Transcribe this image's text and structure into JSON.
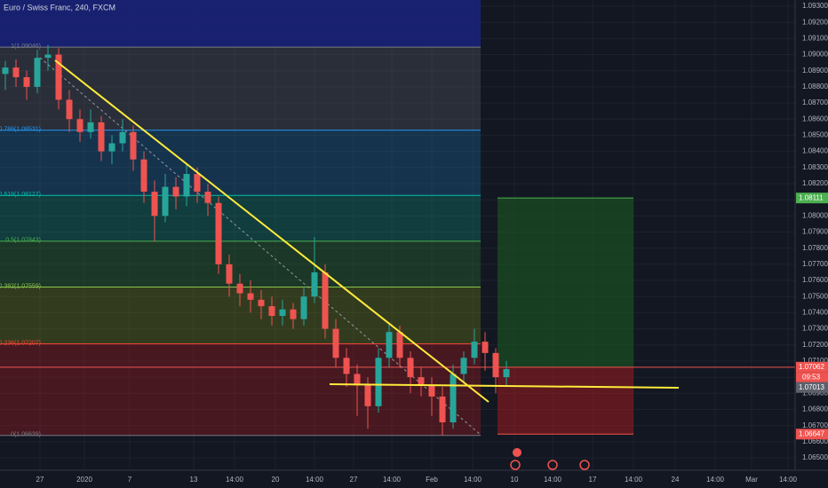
{
  "header": {
    "title": "Euro / Swiss Franc, 240, FXCM"
  },
  "price_axis": {
    "ticks": [
      {
        "value": 1.093,
        "label": "1.09300"
      },
      {
        "value": 1.092,
        "label": "1.09200"
      },
      {
        "value": 1.091,
        "label": "1.09100"
      },
      {
        "value": 1.09,
        "label": "1.09000"
      },
      {
        "value": 1.089,
        "label": "1.08900"
      },
      {
        "value": 1.088,
        "label": "1.08800"
      },
      {
        "value": 1.087,
        "label": "1.08700"
      },
      {
        "value": 1.086,
        "label": "1.08600"
      },
      {
        "value": 1.085,
        "label": "1.08500"
      },
      {
        "value": 1.084,
        "label": "1.08400"
      },
      {
        "value": 1.083,
        "label": "1.08300"
      },
      {
        "value": 1.082,
        "label": "1.08200"
      },
      {
        "value": 1.081,
        "label": "1.08100"
      },
      {
        "value": 1.08,
        "label": "1.08000"
      },
      {
        "value": 1.079,
        "label": "1.07900"
      },
      {
        "value": 1.078,
        "label": "1.07800"
      },
      {
        "value": 1.077,
        "label": "1.07700"
      },
      {
        "value": 1.076,
        "label": "1.07600"
      },
      {
        "value": 1.075,
        "label": "1.07500"
      },
      {
        "value": 1.074,
        "label": "1.07400"
      },
      {
        "value": 1.073,
        "label": "1.07300"
      },
      {
        "value": 1.072,
        "label": "1.07200"
      },
      {
        "value": 1.071,
        "label": "1.07100"
      },
      {
        "value": 1.07,
        "label": "1.07000"
      },
      {
        "value": 1.069,
        "label": "1.06900"
      },
      {
        "value": 1.068,
        "label": "1.06800"
      },
      {
        "value": 1.067,
        "label": "1.06700"
      },
      {
        "value": 1.066,
        "label": "1.06600"
      },
      {
        "value": 1.065,
        "label": "1.06500"
      }
    ]
  },
  "time_axis": {
    "labels": [
      "27",
      "2020",
      "7",
      "13",
      "14:00",
      "20",
      "14:00",
      "27",
      "14:00",
      "Feb",
      "14:00",
      "10",
      "14:00",
      "17",
      "14:00",
      "24",
      "14:00",
      "Mar",
      "14:00"
    ]
  },
  "fib_levels": [
    {
      "level": 1,
      "price": 1.09046,
      "label": "1(1.09046)"
    },
    {
      "level": 0.786,
      "price": 1.08531,
      "label": "0.786(1.08531)"
    },
    {
      "level": 0.618,
      "price": 1.08127,
      "label": "0.618(1.08127)"
    },
    {
      "level": 0.5,
      "price": 1.07843,
      "label": "0.5(1.07843)"
    },
    {
      "level": 0.382,
      "price": 1.07559,
      "label": "0.382(1.07559)"
    },
    {
      "level": 0.236,
      "price": 1.07207,
      "label": "0.236(1.07207)"
    },
    {
      "level": 0,
      "price": 1.06639,
      "label": "0(1.06639)"
    }
  ],
  "candles": [
    [
      1.0888,
      1.0896,
      1.0878,
      1.0892
    ],
    [
      1.0892,
      1.0897,
      1.088,
      1.0886
    ],
    [
      1.0886,
      1.089,
      1.0872,
      1.088
    ],
    [
      1.088,
      1.0903,
      1.0876,
      1.0898
    ],
    [
      1.0898,
      1.0906,
      1.089,
      1.09
    ],
    [
      1.09,
      1.0904,
      1.0866,
      1.0872
    ],
    [
      1.0872,
      1.0878,
      1.0852,
      1.086
    ],
    [
      1.086,
      1.0866,
      1.0846,
      1.0852
    ],
    [
      1.0852,
      1.0866,
      1.0848,
      1.0858
    ],
    [
      1.0858,
      1.0862,
      1.0834,
      1.084
    ],
    [
      1.084,
      1.085,
      1.0832,
      1.0845
    ],
    [
      1.0845,
      1.086,
      1.084,
      1.0852
    ],
    [
      1.0852,
      1.0856,
      1.0828,
      1.0835
    ],
    [
      1.0835,
      1.084,
      1.0808,
      1.0815
    ],
    [
      1.0815,
      1.0822,
      1.0784,
      1.08
    ],
    [
      1.08,
      1.0826,
      1.0796,
      1.0818
    ],
    [
      1.0818,
      1.0824,
      1.0804,
      1.0812
    ],
    [
      1.0812,
      1.0832,
      1.0806,
      1.0826
    ],
    [
      1.0826,
      1.083,
      1.0808,
      1.0815
    ],
    [
      1.0815,
      1.082,
      1.08,
      1.0808
    ],
    [
      1.0808,
      1.0812,
      1.0764,
      1.077
    ],
    [
      1.077,
      1.0776,
      1.075,
      1.0758
    ],
    [
      1.0758,
      1.0764,
      1.0744,
      1.0752
    ],
    [
      1.0752,
      1.076,
      1.074,
      1.0748
    ],
    [
      1.0748,
      1.0754,
      1.0736,
      1.0744
    ],
    [
      1.0744,
      1.075,
      1.0732,
      1.0738
    ],
    [
      1.0738,
      1.0748,
      1.0732,
      1.0742
    ],
    [
      1.0742,
      1.0746,
      1.073,
      1.0736
    ],
    [
      1.0736,
      1.0756,
      1.0732,
      1.075
    ],
    [
      1.075,
      1.0787,
      1.0746,
      1.0765
    ],
    [
      1.0765,
      1.077,
      1.0724,
      1.073
    ],
    [
      1.073,
      1.0736,
      1.0706,
      1.0712
    ],
    [
      1.0712,
      1.0718,
      1.0694,
      1.0702
    ],
    [
      1.0702,
      1.0708,
      1.0676,
      1.0695
    ],
    [
      1.0695,
      1.07,
      1.0668,
      1.0682
    ],
    [
      1.0682,
      1.0718,
      1.0678,
      1.0712
    ],
    [
      1.0712,
      1.0734,
      1.0706,
      1.0728
    ],
    [
      1.0728,
      1.0732,
      1.0706,
      1.0712
    ],
    [
      1.0712,
      1.0716,
      1.069,
      1.07
    ],
    [
      1.07,
      1.0706,
      1.0688,
      1.0695
    ],
    [
      1.0695,
      1.07,
      1.0676,
      1.0688
    ],
    [
      1.0688,
      1.0694,
      1.0664,
      1.0672
    ],
    [
      1.0672,
      1.0708,
      1.0668,
      1.0702
    ],
    [
      1.0702,
      1.0716,
      1.0696,
      1.0712
    ],
    [
      1.0712,
      1.073,
      1.0708,
      1.0722
    ],
    [
      1.0722,
      1.0728,
      1.0704,
      1.0715
    ],
    [
      1.0715,
      1.0718,
      1.069,
      1.07
    ],
    [
      1.07,
      1.071,
      1.0694,
      1.0705
    ]
  ],
  "position": {
    "target": {
      "value": 1.08111,
      "label": "1.08111"
    },
    "entry": {
      "value": 1.07062,
      "label": "1.07062"
    },
    "stop": {
      "value": 1.06647,
      "label": "1.06647"
    },
    "countdown": "09:53"
  },
  "last_price": {
    "value": 1.07013,
    "label": "1.07013"
  }
}
